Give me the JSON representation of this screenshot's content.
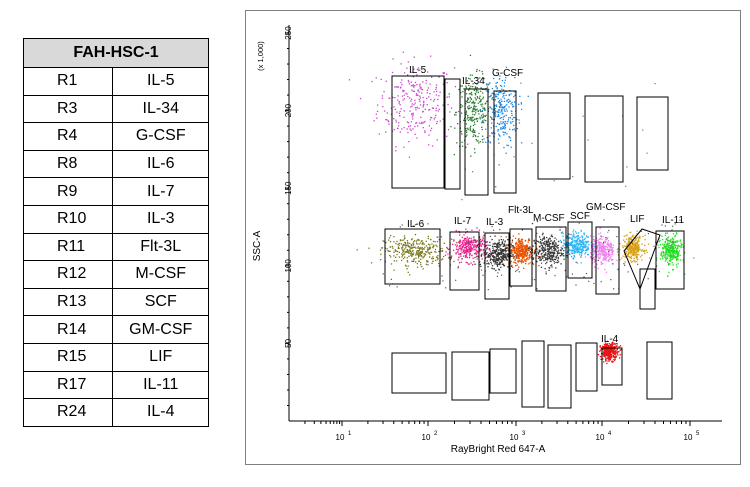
{
  "table": {
    "title": "FAH-HSC-1",
    "rows": [
      [
        "R1",
        "IL-5"
      ],
      [
        "R3",
        "IL-34"
      ],
      [
        "R4",
        "G-CSF"
      ],
      [
        "R8",
        "IL-6"
      ],
      [
        "R9",
        "IL-7"
      ],
      [
        "R10",
        "IL-3"
      ],
      [
        "R11",
        "Flt-3L"
      ],
      [
        "R12",
        "M-CSF"
      ],
      [
        "R13",
        "SCF"
      ],
      [
        "R14",
        "GM-CSF"
      ],
      [
        "R15",
        "LIF"
      ],
      [
        "R17",
        "IL-11"
      ],
      [
        "R24",
        "IL-4"
      ]
    ]
  },
  "chart_data": {
    "type": "scatter",
    "xlabel": "RayBright Red 647-A",
    "ylabel": "SSC-A",
    "y_multiplier_label": "(x 1,000)",
    "xscale": "log",
    "xlim": [
      1,
      100000
    ],
    "x_tick_labels": [
      "10^1",
      "10^2",
      "10^3",
      "10^4",
      "10^5"
    ],
    "ylim": [
      0,
      250
    ],
    "y_ticks": [
      50,
      100,
      150,
      200,
      250
    ],
    "grid": false,
    "populations": [
      {
        "name": "IL-5",
        "color": "#cc44cc",
        "x_center": 70,
        "y_center": 205,
        "x_spread": 0.22,
        "y_spread": 24
      },
      {
        "name": "IL-34",
        "color": "#2e7d32",
        "x_center": 330,
        "y_center": 200,
        "x_spread": 0.1,
        "y_spread": 20
      },
      {
        "name": "G-CSF",
        "color": "#1e88e5",
        "x_center": 660,
        "y_center": 200,
        "x_spread": 0.1,
        "y_spread": 22
      },
      {
        "name": "IL-6",
        "color": "#7a7a1a",
        "x_center": 70,
        "y_center": 110,
        "x_spread": 0.18,
        "y_spread": 8
      },
      {
        "name": "IL-7",
        "color": "#e91e8c",
        "x_center": 290,
        "y_center": 112,
        "x_spread": 0.1,
        "y_spread": 8
      },
      {
        "name": "IL-3",
        "color": "#333333",
        "x_center": 620,
        "y_center": 108,
        "x_spread": 0.08,
        "y_spread": 8
      },
      {
        "name": "Flt-3L",
        "color": "#e65100",
        "x_center": 1150,
        "y_center": 110,
        "x_spread": 0.07,
        "y_spread": 8
      },
      {
        "name": "M-CSF",
        "color": "#3a3a3a",
        "x_center": 2300,
        "y_center": 110,
        "x_spread": 0.09,
        "y_spread": 9
      },
      {
        "name": "SCF",
        "color": "#29b6f6",
        "x_center": 5000,
        "y_center": 114,
        "x_spread": 0.08,
        "y_spread": 7
      },
      {
        "name": "GM-CSF",
        "color": "#ee82ee",
        "x_center": 10000,
        "y_center": 110,
        "x_spread": 0.07,
        "y_spread": 8
      },
      {
        "name": "LIF",
        "color": "#d4a017",
        "x_center": 22000,
        "y_center": 112,
        "x_spread": 0.06,
        "y_spread": 7
      },
      {
        "name": "IL-11",
        "color": "#22dd22",
        "x_center": 60000,
        "y_center": 110,
        "x_spread": 0.06,
        "y_spread": 9
      },
      {
        "name": "IL-4",
        "color": "#ee1111",
        "x_center": 12000,
        "y_center": 45,
        "x_spread": 0.05,
        "y_spread": 5
      }
    ],
    "gate_labels": [
      "IL-5",
      "IL-34",
      "G-CSF",
      "IL-6",
      "IL-7",
      "IL-3",
      "Flt-3L",
      "M-CSF",
      "SCF",
      "GM-CSF",
      "LIF",
      "IL-11",
      "IL-4"
    ]
  }
}
